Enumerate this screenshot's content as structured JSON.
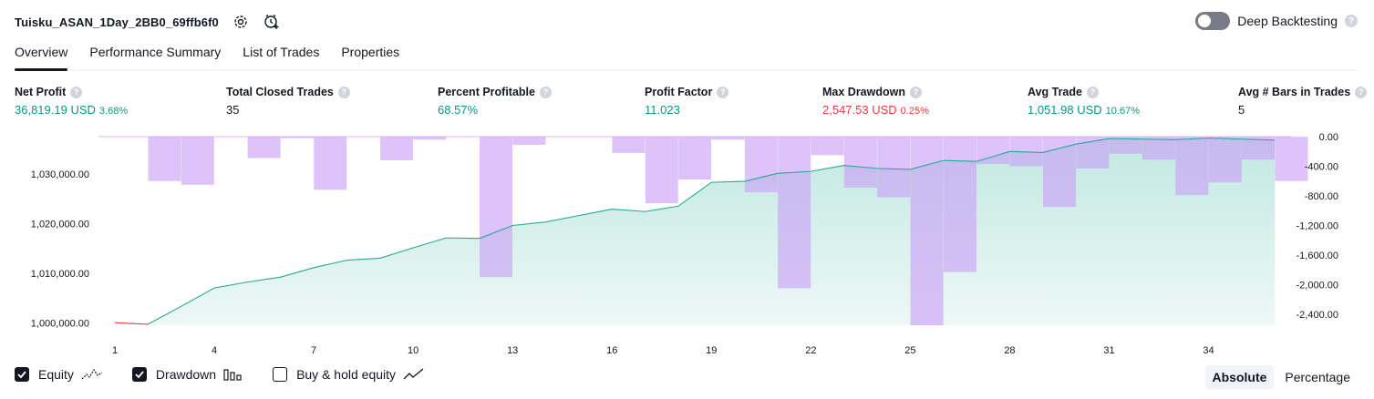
{
  "header": {
    "strategy_title": "Tuisku_ASAN_1Day_2BB0_69ffb6f0",
    "settings_icon": "settings-gear-icon",
    "alert_icon": "add-alert-clock-icon",
    "deep_backtesting_label": "Deep Backtesting",
    "deep_backtesting_enabled": false
  },
  "tabs": [
    {
      "label": "Overview",
      "active": true
    },
    {
      "label": "Performance Summary",
      "active": false
    },
    {
      "label": "List of Trades",
      "active": false
    },
    {
      "label": "Properties",
      "active": false
    }
  ],
  "metrics": {
    "net_profit": {
      "label": "Net Profit",
      "value": "36,819.19 USD",
      "pct": "3.68%"
    },
    "total_closed_trades": {
      "label": "Total Closed Trades",
      "value": "35"
    },
    "percent_profitable": {
      "label": "Percent Profitable",
      "value": "68.57%"
    },
    "profit_factor": {
      "label": "Profit Factor",
      "value": "11.023"
    },
    "max_drawdown": {
      "label": "Max Drawdown",
      "value": "2,547.53 USD",
      "pct": "0.25%"
    },
    "avg_trade": {
      "label": "Avg Trade",
      "value": "1,051.98 USD",
      "pct": "10.67%"
    },
    "avg_bars": {
      "label": "Avg # Bars in Trades",
      "value": "5"
    }
  },
  "colors": {
    "green": "#089981",
    "red": "#f23645",
    "equity_line": "#22ab94",
    "drawdown_bar": "#c99ef7"
  },
  "chart_data": {
    "type": "line",
    "x": [
      1,
      2,
      3,
      4,
      5,
      6,
      7,
      8,
      9,
      10,
      11,
      12,
      13,
      14,
      15,
      16,
      17,
      18,
      19,
      20,
      21,
      22,
      23,
      24,
      25,
      26,
      27,
      28,
      29,
      30,
      31,
      32,
      33,
      34,
      35,
      36
    ],
    "xticks": [
      "1",
      "4",
      "7",
      "10",
      "13",
      "16",
      "19",
      "22",
      "25",
      "28",
      "31",
      "34"
    ],
    "left_axis": {
      "ticks": [
        "1,000,000.00",
        "1,010,000.00",
        "1,020,000.00",
        "1,030,000.00"
      ],
      "ylim": [
        999500,
        1037500
      ]
    },
    "right_axis": {
      "ticks": [
        "0.00",
        "-400.00",
        "-800.00",
        "-1,200.00",
        "-1,600.00",
        "-2,000.00",
        "-2,400.00"
      ],
      "ylim": [
        -2550,
        0
      ]
    },
    "series": [
      {
        "name": "Equity",
        "axis": "left",
        "values": [
          1000000,
          999700,
          1003300,
          1007000,
          1008200,
          1009200,
          1011100,
          1012600,
          1013000,
          1015100,
          1017100,
          1017000,
          1019600,
          1020300,
          1021600,
          1022900,
          1022400,
          1023500,
          1028300,
          1028500,
          1030100,
          1030500,
          1031700,
          1031100,
          1030900,
          1032700,
          1032500,
          1034500,
          1034300,
          1036000,
          1037100,
          1037000,
          1036900,
          1037200,
          1037000,
          1036800
        ]
      },
      {
        "name": "Drawdown",
        "axis": "right",
        "values": [
          0,
          -600,
          -650,
          0,
          -290,
          -20,
          -720,
          0,
          -320,
          -40,
          0,
          -1900,
          -110,
          0,
          0,
          -220,
          -900,
          -580,
          -40,
          -750,
          -2050,
          -250,
          -690,
          -820,
          -2550,
          -1830,
          -370,
          -400,
          -950,
          -430,
          -230,
          -310,
          -790,
          -620,
          -310,
          -600
        ]
      }
    ]
  },
  "legend": {
    "items": [
      {
        "label": "Equity",
        "checked": true,
        "icon": "equity-line-icon"
      },
      {
        "label": "Drawdown",
        "checked": true,
        "icon": "drawdown-bars-icon"
      },
      {
        "label": "Buy & hold equity",
        "checked": false,
        "icon": "buy-hold-line-icon"
      }
    ],
    "modes": [
      {
        "label": "Absolute",
        "active": true
      },
      {
        "label": "Percentage",
        "active": false
      }
    ]
  }
}
